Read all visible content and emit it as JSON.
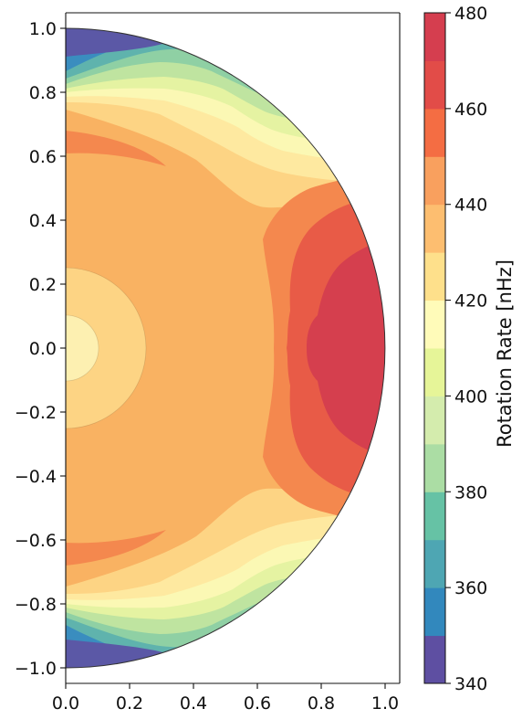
{
  "chart_data": {
    "type": "heatmap",
    "plot": "filled contour (solar internal rotation, meridional half-disk)",
    "colormap": "Spectral_r",
    "xlim": [
      0.0,
      1.0
    ],
    "ylim": [
      -1.0,
      1.0
    ],
    "xticks": [
      "0.0",
      "0.2",
      "0.4",
      "0.6",
      "0.8",
      "1.0"
    ],
    "yticks": [
      "1.0",
      "0.8",
      "0.6",
      "0.4",
      "0.2",
      "0.0",
      "−0.2",
      "−0.4",
      "−0.6",
      "−0.8",
      "−1.0"
    ],
    "yticks_values": [
      1.0,
      0.8,
      0.6,
      0.4,
      0.2,
      0.0,
      -0.2,
      -0.4,
      -0.6,
      -0.8,
      -1.0
    ],
    "xticks_values": [
      0.0,
      0.2,
      0.4,
      0.6,
      0.8,
      1.0
    ],
    "colorbar": {
      "label": "Rotation Rate [nHz]",
      "min": 340,
      "max": 480,
      "step": 10,
      "ticks": [
        "340",
        "360",
        "380",
        "400",
        "420",
        "440",
        "460",
        "480"
      ],
      "tick_values": [
        340,
        360,
        380,
        400,
        420,
        440,
        460,
        480
      ],
      "colors": [
        "#5e4fa2",
        "#3288bd",
        "#4ea6b3",
        "#66c2a5",
        "#abdda4",
        "#d4ecad",
        "#e6f598",
        "#fffbb9",
        "#fee08b",
        "#fdbe70",
        "#f9a05e",
        "#f46d43",
        "#e24c48",
        "#d53e4f"
      ]
    },
    "features": {
      "core_center_nhz": 425,
      "radiative_interior_nhz": 435,
      "equator_max_nhz": 465,
      "pole_min_nhz": 345
    }
  }
}
